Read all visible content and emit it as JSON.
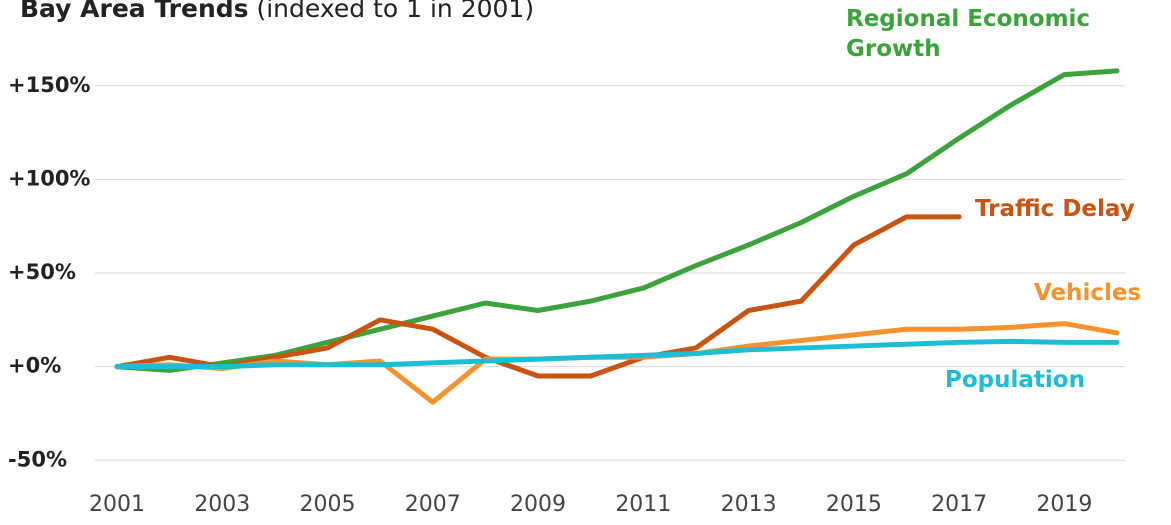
{
  "chart_data": {
    "type": "line",
    "title": "Bay Area Trends",
    "subtitle": "(indexed to 1 in 2001)",
    "x": [
      2001,
      2002,
      2003,
      2004,
      2005,
      2006,
      2007,
      2008,
      2009,
      2010,
      2011,
      2012,
      2013,
      2014,
      2015,
      2016,
      2017,
      2018,
      2019,
      2020
    ],
    "series": [
      {
        "name": "Regional Economic Growth",
        "color": "#3ca33c",
        "values": [
          0,
          -2,
          2,
          6,
          13,
          20,
          27,
          34,
          30,
          35,
          42,
          54,
          65,
          77,
          91,
          103,
          122,
          140,
          156,
          158
        ]
      },
      {
        "name": "Traffic Delay",
        "color": "#c9530f",
        "values": [
          0,
          5,
          0,
          5,
          10,
          25,
          20,
          5,
          -5,
          -5,
          5,
          10,
          30,
          35,
          65,
          80,
          80,
          null,
          null,
          null
        ]
      },
      {
        "name": "Vehicles",
        "color": "#f7922c",
        "values": [
          0,
          1,
          -1,
          3,
          1,
          3,
          -19,
          4,
          4,
          5,
          5,
          7,
          11,
          14,
          17,
          20,
          20,
          21,
          23,
          18
        ]
      },
      {
        "name": "Population",
        "color": "#1cbdd5",
        "values": [
          0,
          0,
          0,
          1,
          1,
          1,
          2,
          3,
          4,
          5,
          6,
          7,
          9,
          10,
          11,
          12,
          13,
          13.5,
          13,
          13
        ]
      }
    ],
    "xlim": [
      2001,
      2020
    ],
    "xticks": [
      2001,
      2003,
      2005,
      2007,
      2009,
      2011,
      2013,
      2015,
      2017,
      2019
    ],
    "ylim": [
      -60,
      175
    ],
    "yticks": [
      {
        "value": -50,
        "label": "-50%"
      },
      {
        "value": 0,
        "label": "+0%"
      },
      {
        "value": 50,
        "label": "+50%"
      },
      {
        "value": 100,
        "label": "+100%"
      },
      {
        "value": 150,
        "label": "+150%"
      }
    ],
    "grid": true
  }
}
